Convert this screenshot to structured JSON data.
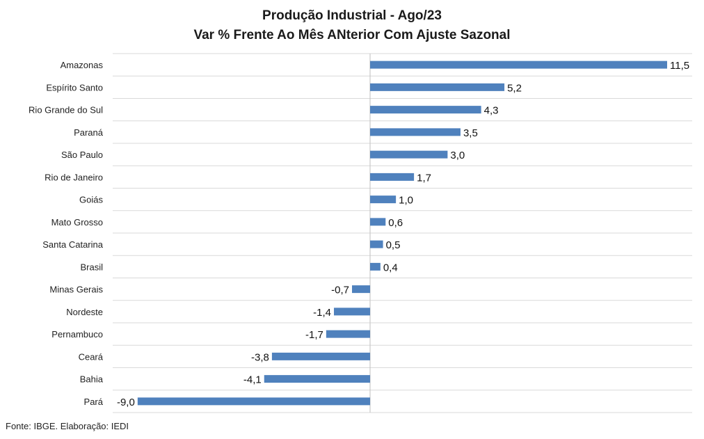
{
  "chart_data": {
    "type": "bar",
    "orientation": "horizontal",
    "title": "Produção Industrial - Ago/23",
    "subtitle": "Var % Frente Ao Mês ANterior Com Ajuste Sazonal",
    "categories": [
      "Amazonas",
      "Espírito Santo",
      "Rio Grande do Sul",
      "Paraná",
      "São Paulo",
      "Rio de Janeiro",
      "Goiás",
      "Mato Grosso",
      "Santa Catarina",
      "Brasil",
      "Minas Gerais",
      "Nordeste",
      "Pernambuco",
      "Ceará",
      "Bahia",
      "Pará"
    ],
    "values": [
      11.5,
      5.2,
      4.3,
      3.5,
      3.0,
      1.7,
      1.0,
      0.6,
      0.5,
      0.4,
      -0.7,
      -1.4,
      -1.7,
      -3.8,
      -4.1,
      -9.0
    ],
    "value_labels": [
      "11,5",
      "5,2",
      "4,3",
      "3,5",
      "3,0",
      "1,7",
      "1,0",
      "0,6",
      "0,5",
      "0,4",
      "-0,7",
      "-1,4",
      "-1,7",
      "-3,8",
      "-4,1",
      "-9,0"
    ],
    "xlim": [
      -9.0,
      11.5
    ],
    "grid": true,
    "bar_color": "#4f81bd",
    "gridline_color": "#d9d9d9",
    "axis_color": "#bfbfbf"
  },
  "footer": {
    "source": "Fonte: IBGE. Elaboração: IEDI"
  }
}
